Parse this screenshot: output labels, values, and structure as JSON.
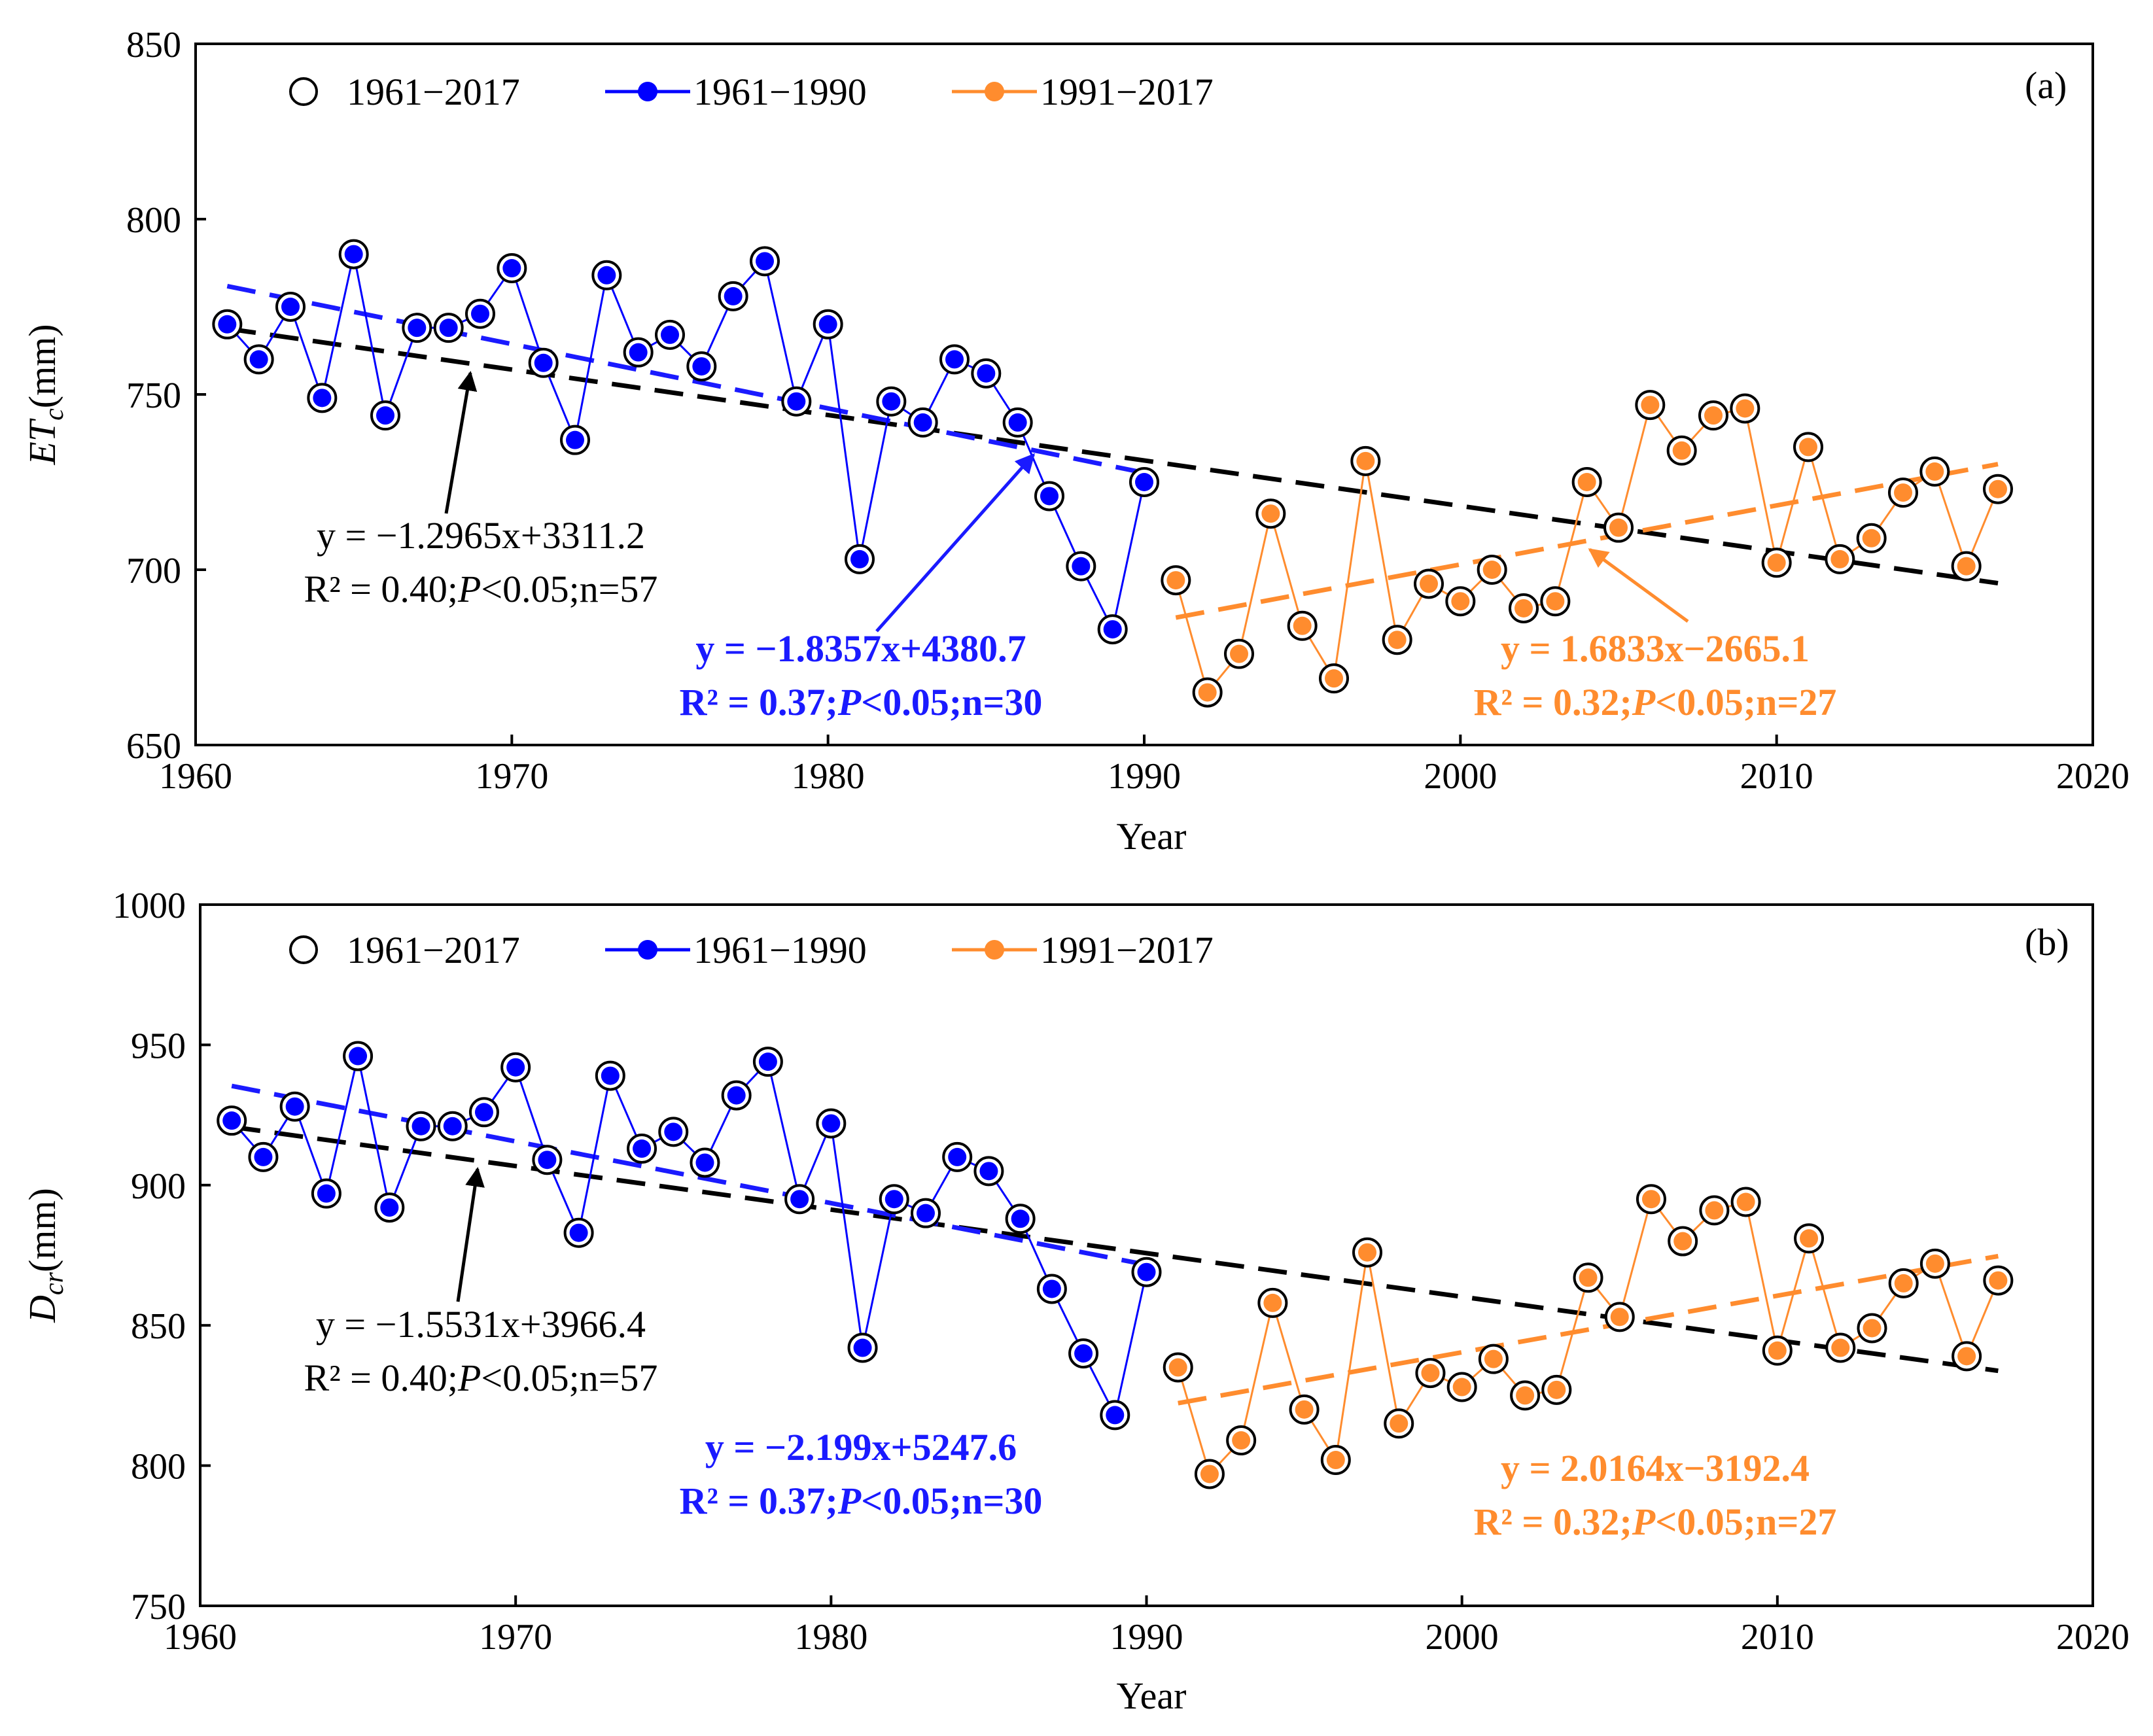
{
  "colors": {
    "all": "#000000",
    "early": "#0000ff",
    "late": "#ff8c2e",
    "early_fit": "#1a1aff",
    "late_fit": "#ff8c2e"
  },
  "chart_data": [
    {
      "type": "line",
      "panel": "a",
      "panel_label": "(a)",
      "title": "",
      "xlabel": "Year",
      "ylabel_main": "ET",
      "ylabel_sub": "c",
      "ylabel_unit": "(mm)",
      "xlim": [
        1960,
        2020
      ],
      "ylim": [
        650,
        850
      ],
      "xticks": [
        1960,
        1970,
        1980,
        1990,
        2000,
        2010,
        2020
      ],
      "yticks": [
        650,
        700,
        750,
        800,
        850
      ],
      "legend": [
        "1961−2017",
        "1961−1990",
        "1991−2017"
      ],
      "series": [
        {
          "name": "1961−1990",
          "x": [
            1961,
            1962,
            1963,
            1964,
            1965,
            1966,
            1967,
            1968,
            1969,
            1970,
            1971,
            1972,
            1973,
            1974,
            1975,
            1976,
            1977,
            1978,
            1979,
            1980,
            1981,
            1982,
            1983,
            1984,
            1985,
            1986,
            1987,
            1988,
            1989,
            1990
          ],
          "values": [
            770,
            760,
            775,
            749,
            790,
            744,
            769,
            769,
            773,
            786,
            759,
            737,
            784,
            762,
            767,
            758,
            778,
            788,
            748,
            770,
            703,
            748,
            742,
            760,
            756,
            742,
            721,
            701,
            683,
            725
          ]
        },
        {
          "name": "1991−2017",
          "x": [
            1991,
            1992,
            1993,
            1994,
            1995,
            1996,
            1997,
            1998,
            1999,
            2000,
            2001,
            2002,
            2003,
            2004,
            2005,
            2006,
            2007,
            2008,
            2009,
            2010,
            2011,
            2012,
            2013,
            2014,
            2015,
            2016,
            2017
          ],
          "values": [
            697,
            665,
            676,
            716,
            684,
            669,
            731,
            680,
            696,
            691,
            700,
            689,
            691,
            725,
            712,
            747,
            734,
            744,
            746,
            702,
            735,
            703,
            709,
            722,
            728,
            701,
            723
          ]
        }
      ],
      "trends": [
        {
          "name": "1961−2017",
          "slope": -1.2965,
          "intercept": 3311.2,
          "x_range": [
            1961,
            2017
          ]
        },
        {
          "name": "1961−1990",
          "slope": -1.8357,
          "intercept": 4380.7,
          "x_range": [
            1961,
            1990
          ]
        },
        {
          "name": "1991−2017",
          "slope": 1.6833,
          "intercept": -2665.1,
          "x_range": [
            1991,
            2017
          ]
        }
      ],
      "annotations": {
        "all_eq": "y = −1.2965x+3311.2",
        "all_stat_prefix": "R² = 0.40;",
        "all_stat_p": "P",
        "all_stat_suffix": "<0.05;n=57",
        "early_eq": "y = −1.8357x+4380.7",
        "early_stat_prefix": "R² = 0.37;",
        "early_stat_p": "P",
        "early_stat_suffix": "<0.05;n=30",
        "late_eq": "y = 1.6833x−2665.1",
        "late_stat_prefix": "R² = 0.32;",
        "late_stat_p": "P",
        "late_stat_suffix": "<0.05;n=27"
      }
    },
    {
      "type": "line",
      "panel": "b",
      "panel_label": "(b)",
      "title": "",
      "xlabel": "Year",
      "ylabel_main": "D",
      "ylabel_sub": "cr",
      "ylabel_unit": "(mm)",
      "xlim": [
        1960,
        2020
      ],
      "ylim": [
        750,
        1000
      ],
      "xticks": [
        1960,
        1970,
        1980,
        1990,
        2000,
        2010,
        2020
      ],
      "yticks": [
        750,
        800,
        850,
        900,
        950,
        1000
      ],
      "legend": [
        "1961−2017",
        "1961−1990",
        "1991−2017"
      ],
      "series": [
        {
          "name": "1961−1990",
          "x": [
            1961,
            1962,
            1963,
            1964,
            1965,
            1966,
            1967,
            1968,
            1969,
            1970,
            1971,
            1972,
            1973,
            1974,
            1975,
            1976,
            1977,
            1978,
            1979,
            1980,
            1981,
            1982,
            1983,
            1984,
            1985,
            1986,
            1987,
            1988,
            1989,
            1990
          ],
          "values": [
            923,
            910,
            928,
            897,
            946,
            892,
            921,
            921,
            926,
            942,
            909,
            883,
            939,
            913,
            919,
            908,
            932,
            944,
            895,
            922,
            842,
            895,
            890,
            910,
            905,
            888,
            863,
            840,
            818,
            869
          ]
        },
        {
          "name": "1991−2017",
          "x": [
            1991,
            1992,
            1993,
            1994,
            1995,
            1996,
            1997,
            1998,
            1999,
            2000,
            2001,
            2002,
            2003,
            2004,
            2005,
            2006,
            2007,
            2008,
            2009,
            2010,
            2011,
            2012,
            2013,
            2014,
            2015,
            2016,
            2017
          ],
          "values": [
            835,
            797,
            809,
            858,
            820,
            802,
            876,
            815,
            833,
            828,
            838,
            825,
            827,
            867,
            853,
            895,
            880,
            891,
            894,
            841,
            881,
            842,
            849,
            865,
            872,
            839,
            866
          ]
        }
      ],
      "trends": [
        {
          "name": "1961−2017",
          "slope": -1.5531,
          "intercept": 3966.4,
          "x_range": [
            1961,
            2017
          ]
        },
        {
          "name": "1961−1990",
          "slope": -2.199,
          "intercept": 5247.6,
          "x_range": [
            1961,
            1990
          ]
        },
        {
          "name": "1991−2017",
          "slope": 2.0164,
          "intercept": -3192.4,
          "x_range": [
            1991,
            2017
          ]
        }
      ],
      "annotations": {
        "all_eq": "y = −1.5531x+3966.4",
        "all_stat_prefix": "R² = 0.40;",
        "all_stat_p": "P",
        "all_stat_suffix": "<0.05;n=57",
        "early_eq": "y = −2.199x+5247.6",
        "early_stat_prefix": "R² = 0.37;",
        "early_stat_p": "P",
        "early_stat_suffix": "<0.05;n=30",
        "late_eq": "y = 2.0164x−3192.4",
        "late_stat_prefix": "R² = 0.32;",
        "late_stat_p": "P",
        "late_stat_suffix": "<0.05;n=27"
      }
    }
  ]
}
